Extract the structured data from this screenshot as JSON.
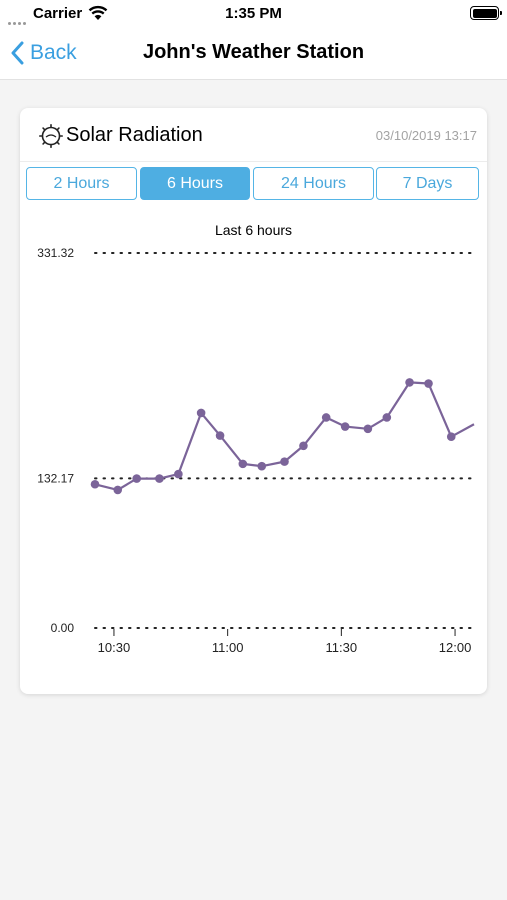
{
  "status_bar": {
    "carrier": "Carrier",
    "time": "1:35 PM"
  },
  "nav": {
    "back_label": "Back",
    "title": "John's Weather Station"
  },
  "card": {
    "title": "Solar Radiation",
    "timestamp": "03/10/2019 13:17",
    "tabs": [
      {
        "label": "2 Hours",
        "active": false
      },
      {
        "label": "6 Hours",
        "active": true
      },
      {
        "label": "24 Hours",
        "active": false
      },
      {
        "label": "7 Days",
        "active": false
      }
    ]
  },
  "colors": {
    "accent": "#4eaee2",
    "line": "#7b6499"
  },
  "chart_data": {
    "type": "line",
    "title": "Last 6 hours",
    "xlabel": "",
    "ylabel": "",
    "y_ticks": [
      0.0,
      132.17,
      331.32
    ],
    "y_tick_labels": [
      "0.00",
      "132.17",
      "331.32"
    ],
    "ylim": [
      0,
      331.32
    ],
    "x_ticks": [
      "10:30",
      "11:00",
      "11:30",
      "12:00"
    ],
    "x_tick_minutes": [
      630,
      660,
      690,
      720
    ],
    "xlim": [
      "10:25",
      "12:05"
    ],
    "series": [
      {
        "name": "",
        "points": [
          [
            "10:25",
            127
          ],
          [
            "10:31",
            122
          ],
          [
            "10:36",
            132
          ],
          [
            "10:42",
            132
          ],
          [
            "10:47",
            136
          ],
          [
            "10:53",
            190
          ],
          [
            "10:58",
            170
          ],
          [
            "11:04",
            145
          ],
          [
            "11:09",
            143
          ],
          [
            "11:15",
            147
          ],
          [
            "11:20",
            161
          ],
          [
            "11:26",
            186
          ],
          [
            "11:31",
            178
          ],
          [
            "11:37",
            176
          ],
          [
            "11:42",
            186
          ],
          [
            "11:48",
            217
          ],
          [
            "11:53",
            216
          ],
          [
            "11:59",
            169
          ],
          [
            "12:05",
            180
          ]
        ]
      }
    ]
  }
}
